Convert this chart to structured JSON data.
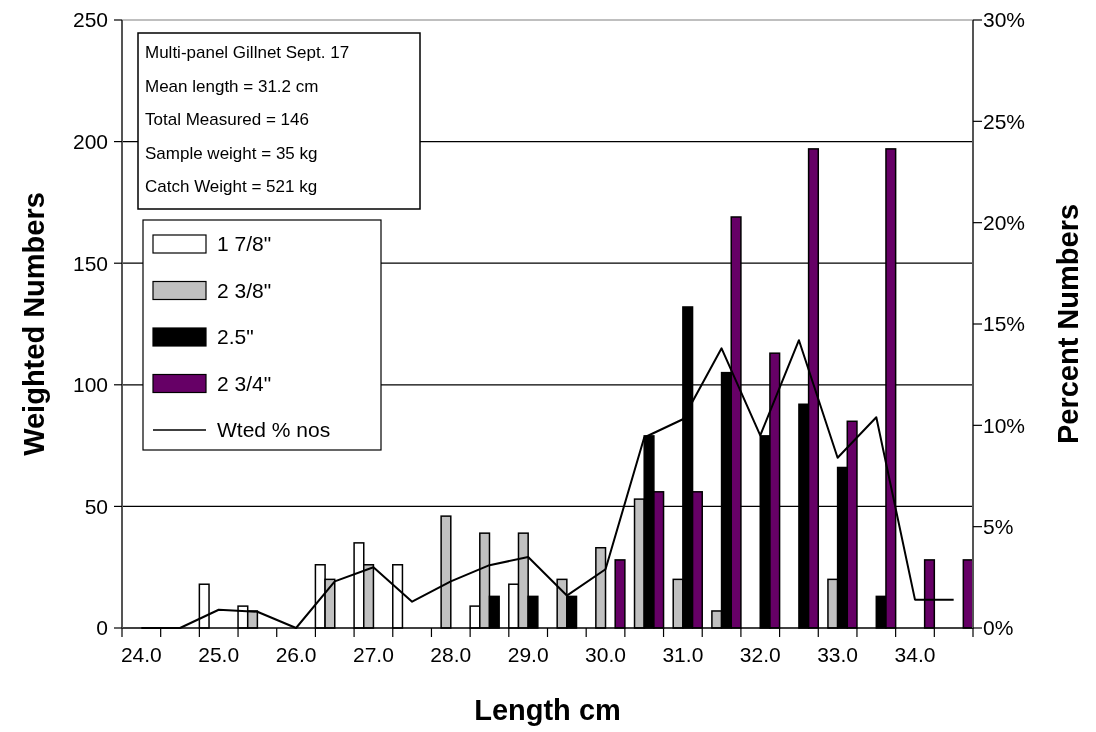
{
  "chart_data": {
    "type": "bar",
    "xlabel": "Length cm",
    "ylabel": "Weighted Numbers",
    "y2label": "Percent Numbers",
    "annotations": [
      "Multi-panel Gillnet Sept. 17",
      "Mean length = 31.2 cm",
      "Total Measured = 146",
      "Sample weight = 35 kg",
      "Catch Weight = 521 kg"
    ],
    "categories": [
      "24.0",
      null,
      "25.0",
      null,
      "26.0",
      null,
      "27.0",
      null,
      "28.0",
      null,
      "29.0",
      null,
      "30.0",
      null,
      "31.0",
      null,
      "32.0",
      null,
      "33.0",
      null,
      "34.0",
      null
    ],
    "series": [
      {
        "name": "1 7/8\"",
        "color": "#ffffff",
        "values": [
          null,
          null,
          18,
          9,
          null,
          26,
          35,
          26,
          null,
          9,
          18,
          null,
          null,
          null,
          null,
          null,
          null,
          null,
          null,
          null,
          null,
          null
        ]
      },
      {
        "name": "2 3/8\"",
        "color": "#c0c0c0",
        "values": [
          null,
          null,
          null,
          7,
          null,
          20,
          26,
          null,
          46,
          39,
          39,
          20,
          33,
          53,
          20,
          7,
          null,
          null,
          20,
          null,
          null,
          null
        ]
      },
      {
        "name": "2.5\"",
        "color": "#000000",
        "values": [
          null,
          null,
          null,
          null,
          null,
          null,
          null,
          null,
          null,
          13,
          13,
          13,
          null,
          79,
          132,
          105,
          79,
          92,
          66,
          13,
          null,
          null
        ]
      },
      {
        "name": "2 3/4\"",
        "color": "#660066",
        "values": [
          null,
          null,
          null,
          null,
          null,
          null,
          null,
          null,
          null,
          null,
          null,
          null,
          28,
          56,
          56,
          169,
          113,
          197,
          85,
          197,
          28,
          28
        ]
      },
      {
        "name": "Wted % nos",
        "type": "line",
        "axis": "y2",
        "color": "#000000",
        "values": [
          0,
          0,
          0.9,
          0.8,
          0,
          2.3,
          3.0,
          1.3,
          2.3,
          3.1,
          3.5,
          1.6,
          2.9,
          9.4,
          10.3,
          13.8,
          9.5,
          14.2,
          8.4,
          10.4,
          1.4,
          1.4
        ]
      }
    ],
    "ylim": [
      0,
      250
    ],
    "yticks": [
      0,
      50,
      100,
      150,
      200,
      250
    ],
    "y2lim": [
      0,
      30
    ],
    "y2ticks": [
      {
        "value": 0,
        "label": "0%"
      },
      {
        "value": 5,
        "label": "5%"
      },
      {
        "value": 10,
        "label": "10%"
      },
      {
        "value": 15,
        "label": "15%"
      },
      {
        "value": 20,
        "label": "20%"
      },
      {
        "value": 25,
        "label": "25%"
      },
      {
        "value": 30,
        "label": "30%"
      }
    ],
    "grid": "y",
    "legend": "left"
  }
}
